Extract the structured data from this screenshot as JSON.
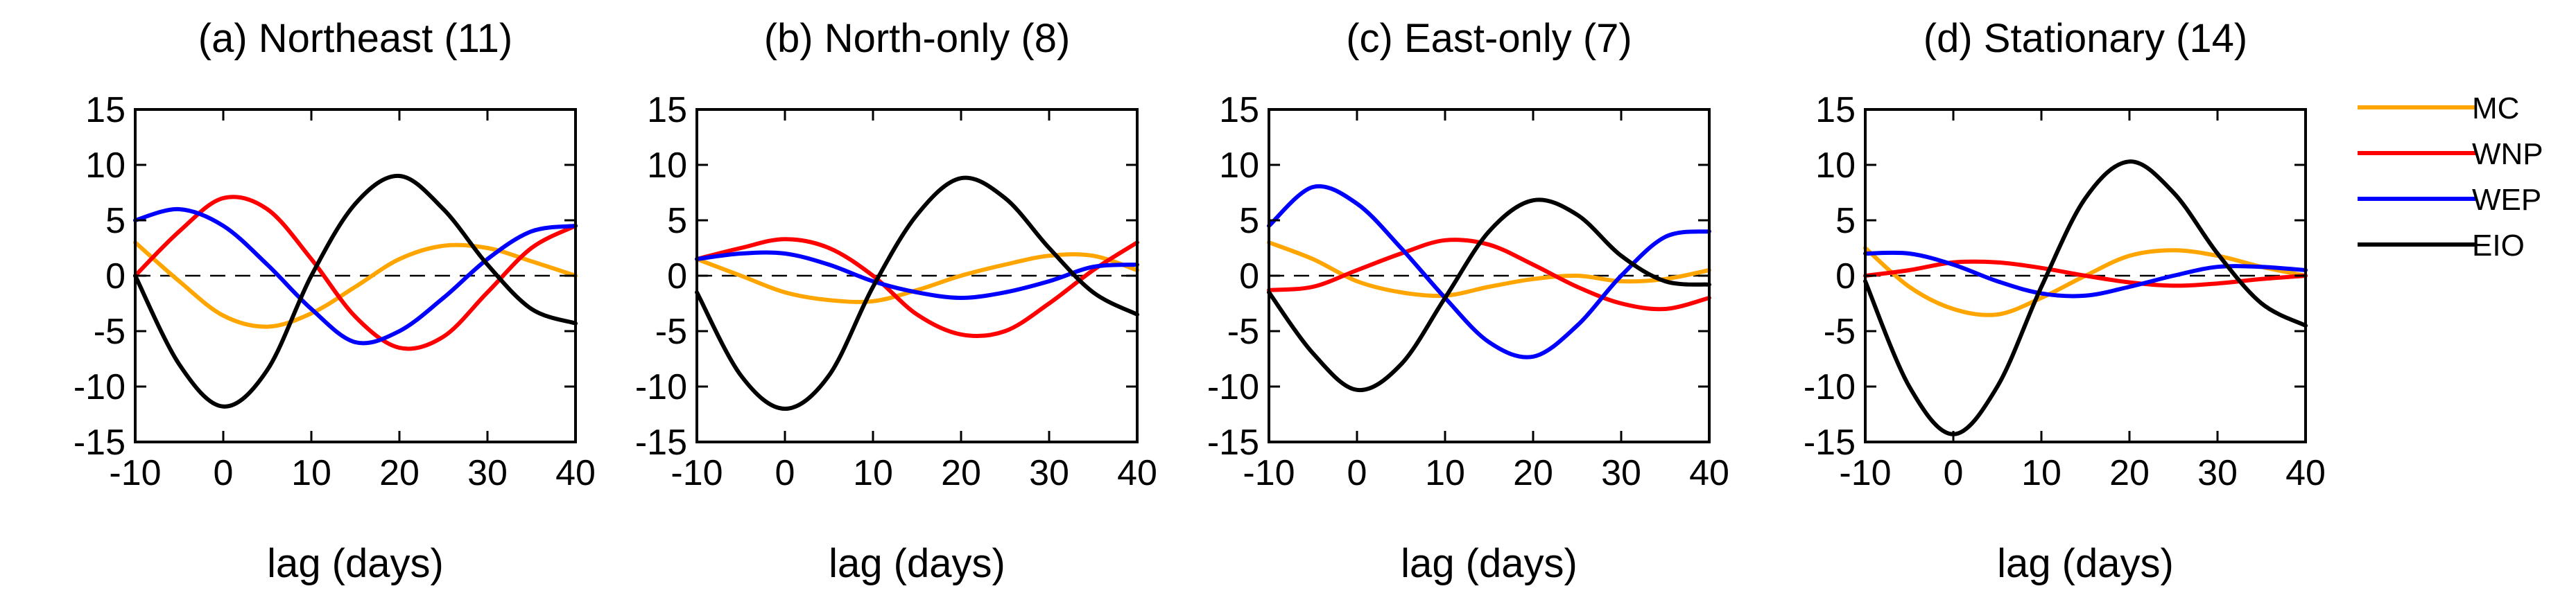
{
  "chart_data": [
    {
      "type": "line",
      "title": "(a) Northeast (11)",
      "xlabel": "lag (days)",
      "ylabel": "",
      "xlim": [
        -10,
        40
      ],
      "ylim": [
        -15,
        15
      ],
      "xticks": [
        -10,
        0,
        10,
        20,
        30,
        40
      ],
      "yticks": [
        15,
        10,
        5,
        0,
        -5,
        -10,
        -15
      ],
      "reference_line": 0,
      "x": [
        -10,
        -5,
        0,
        5,
        10,
        15,
        20,
        25,
        30,
        35,
        40
      ],
      "series": [
        {
          "name": "MC",
          "color": "#FFA500",
          "values": [
            3,
            -0.5,
            -3.6,
            -4.6,
            -3.4,
            -1,
            1.5,
            2.7,
            2.5,
            1.3,
            0
          ]
        },
        {
          "name": "WNP",
          "color": "#FF0000",
          "values": [
            0,
            4,
            7,
            6,
            1.5,
            -3.7,
            -6.5,
            -5.5,
            -1.5,
            2.5,
            4.5
          ]
        },
        {
          "name": "WEP",
          "color": "#0000FF",
          "values": [
            5,
            6,
            4.5,
            1,
            -3,
            -6,
            -5,
            -2,
            1.5,
            4,
            4.5
          ]
        },
        {
          "name": "EIO",
          "color": "#000000",
          "values": [
            0,
            -8,
            -11.8,
            -8.5,
            0,
            6.5,
            9,
            6,
            1,
            -3,
            -4.3
          ]
        }
      ]
    },
    {
      "type": "line",
      "title": "(b) North-only (8)",
      "xlabel": "lag (days)",
      "ylabel": "",
      "xlim": [
        -10,
        40
      ],
      "ylim": [
        -15,
        15
      ],
      "xticks": [
        -10,
        0,
        10,
        20,
        30,
        40
      ],
      "yticks": [
        15,
        10,
        5,
        0,
        -5,
        -10,
        -15
      ],
      "reference_line": 0,
      "x": [
        -10,
        -5,
        0,
        5,
        10,
        15,
        20,
        25,
        30,
        35,
        40
      ],
      "series": [
        {
          "name": "MC",
          "color": "#FFA500",
          "values": [
            1.5,
            0,
            -1.5,
            -2.2,
            -2.3,
            -1.3,
            0,
            1,
            1.8,
            1.8,
            0.5
          ]
        },
        {
          "name": "WNP",
          "color": "#FF0000",
          "values": [
            1.5,
            2.5,
            3.3,
            2.5,
            0,
            -3.5,
            -5.3,
            -5,
            -2.5,
            0.5,
            3
          ]
        },
        {
          "name": "WEP",
          "color": "#0000FF",
          "values": [
            1.5,
            2,
            2,
            1,
            -0.5,
            -1.5,
            -2,
            -1.5,
            -0.5,
            0.8,
            1
          ]
        },
        {
          "name": "EIO",
          "color": "#000000",
          "values": [
            -1.5,
            -9,
            -12,
            -9,
            -1,
            5.5,
            8.8,
            7,
            2.5,
            -1.5,
            -3.5
          ]
        }
      ]
    },
    {
      "type": "line",
      "title": "(c) East-only (7)",
      "xlabel": "lag (days)",
      "ylabel": "",
      "xlim": [
        -10,
        40
      ],
      "ylim": [
        -15,
        15
      ],
      "xticks": [
        -10,
        0,
        10,
        20,
        30,
        40
      ],
      "yticks": [
        15,
        10,
        5,
        0,
        -5,
        -10,
        -15
      ],
      "reference_line": 0,
      "x": [
        -10,
        -5,
        0,
        5,
        10,
        15,
        20,
        25,
        30,
        35,
        40
      ],
      "series": [
        {
          "name": "MC",
          "color": "#FFA500",
          "values": [
            3,
            1.5,
            -0.5,
            -1.5,
            -1.8,
            -1,
            -0.3,
            0,
            -0.5,
            -0.3,
            0.5
          ]
        },
        {
          "name": "WNP",
          "color": "#FF0000",
          "values": [
            -1.3,
            -1,
            0.5,
            2,
            3.2,
            2.8,
            1,
            -1,
            -2.5,
            -3,
            -2
          ]
        },
        {
          "name": "WEP",
          "color": "#0000FF",
          "values": [
            4.5,
            8,
            6.5,
            2.5,
            -2,
            -6,
            -7.3,
            -4.5,
            0,
            3.5,
            4
          ]
        },
        {
          "name": "EIO",
          "color": "#000000",
          "values": [
            -1.5,
            -7,
            -10.3,
            -8,
            -2,
            4,
            6.8,
            5.5,
            1.8,
            -0.5,
            -0.8
          ]
        }
      ]
    },
    {
      "type": "line",
      "title": "(d) Stationary (14)",
      "xlabel": "lag (days)",
      "ylabel": "",
      "xlim": [
        -10,
        40
      ],
      "ylim": [
        -15,
        15
      ],
      "xticks": [
        -10,
        0,
        10,
        20,
        30,
        40
      ],
      "yticks": [
        15,
        10,
        5,
        0,
        -5,
        -10,
        -15
      ],
      "reference_line": 0,
      "x": [
        -10,
        -5,
        0,
        5,
        10,
        15,
        20,
        25,
        30,
        35,
        40
      ],
      "series": [
        {
          "name": "MC",
          "color": "#FFA500",
          "values": [
            2.5,
            -1,
            -3,
            -3.5,
            -2,
            0,
            1.8,
            2.3,
            1.8,
            0.8,
            0
          ]
        },
        {
          "name": "WNP",
          "color": "#FF0000",
          "values": [
            0,
            0.5,
            1.2,
            1.2,
            0.7,
            0,
            -0.6,
            -0.9,
            -0.7,
            -0.3,
            0
          ]
        },
        {
          "name": "WEP",
          "color": "#0000FF",
          "values": [
            2,
            2,
            1,
            -0.5,
            -1.6,
            -1.8,
            -1,
            0,
            0.8,
            0.8,
            0.5
          ]
        },
        {
          "name": "EIO",
          "color": "#000000",
          "values": [
            -0.5,
            -10,
            -14.3,
            -10,
            -1,
            7,
            10.3,
            7.5,
            2,
            -2.5,
            -4.5
          ]
        }
      ]
    }
  ],
  "legend": {
    "placement": "right",
    "items": [
      {
        "label": "MC",
        "color": "#FFA500"
      },
      {
        "label": "WNP",
        "color": "#FF0000"
      },
      {
        "label": "WEP",
        "color": "#0000FF"
      },
      {
        "label": "EIO",
        "color": "#000000"
      }
    ]
  }
}
